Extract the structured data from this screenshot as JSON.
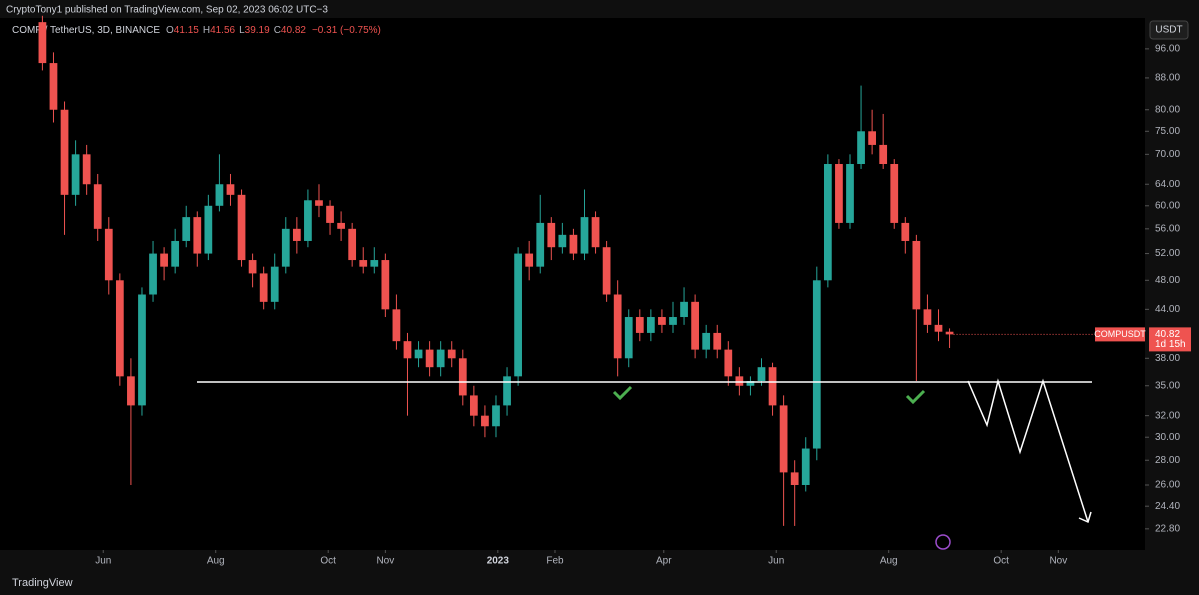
{
  "header": {
    "published": "CryptoTony1 published on TradingView.com, Sep 02, 2023 06:02 UTC−3",
    "symbol": "COMP / TetherUS, 3D, BINANCE",
    "ohlc_prefixes": [
      "O",
      "H",
      "L",
      "C"
    ],
    "change": "−0.31 (−0.75%)",
    "currency": "USDT",
    "brand": "TradingView"
  },
  "chart_data": {
    "type": "candlestick",
    "x": [
      -33,
      -27,
      -21,
      -15,
      -9,
      -3,
      3,
      9,
      15,
      21,
      27,
      33,
      39,
      45,
      51,
      57,
      63,
      69,
      75,
      81,
      87,
      93,
      99,
      105,
      111,
      117,
      123,
      129,
      135,
      141,
      147,
      153,
      159,
      165,
      171,
      177,
      183,
      189,
      195,
      201,
      207,
      213,
      219,
      225,
      231,
      237,
      243,
      249,
      255,
      261,
      267,
      273,
      279,
      285,
      291,
      297,
      303,
      309,
      315,
      321,
      327,
      333,
      339,
      345,
      351,
      357,
      363,
      369,
      375,
      381,
      387,
      393,
      399,
      405,
      411,
      417,
      423,
      429,
      435,
      441,
      447,
      453,
      459
    ],
    "open": [
      104,
      92,
      80,
      62,
      70,
      64,
      56,
      48,
      36,
      33,
      46,
      52,
      50,
      54,
      58,
      52,
      60,
      64,
      62,
      51,
      49,
      45,
      50,
      56,
      54,
      61,
      60,
      57,
      56,
      51,
      50,
      51,
      44,
      40,
      38,
      39,
      37,
      39,
      38,
      34,
      32,
      31,
      33,
      36,
      52,
      50,
      57,
      53,
      55,
      52,
      58,
      53,
      46,
      38,
      43,
      41,
      43,
      42,
      43,
      45,
      39,
      41,
      39,
      36,
      35,
      35.5,
      37,
      33,
      27,
      26,
      29,
      48,
      68,
      57,
      68,
      75,
      72,
      68,
      57,
      54,
      44,
      42,
      41.15
    ],
    "high": [
      106,
      95,
      82,
      73,
      72,
      66,
      58,
      49,
      38,
      47,
      54,
      53,
      56,
      60,
      59,
      62,
      70,
      66,
      63,
      52,
      50,
      52,
      58,
      58,
      63,
      64,
      61,
      59,
      57,
      53,
      53,
      52,
      46,
      41,
      40,
      40,
      40,
      40,
      39,
      35,
      33,
      34,
      37,
      53,
      54,
      62,
      58,
      57,
      56,
      63,
      59,
      54,
      48,
      44,
      44,
      44,
      44,
      45,
      47,
      46,
      42,
      42,
      40,
      37,
      36,
      38,
      37.5,
      34,
      28,
      30,
      50,
      70,
      69,
      70,
      86,
      80,
      79,
      69,
      58,
      55,
      46,
      44,
      41.56
    ],
    "low": [
      90,
      77,
      55,
      60,
      62,
      54,
      46,
      35,
      26,
      32,
      45,
      48,
      49,
      53,
      50,
      51,
      59,
      60,
      50,
      47,
      44,
      44,
      49,
      52,
      53,
      58,
      55,
      54,
      50,
      49,
      49,
      43,
      39,
      32,
      37,
      36,
      36,
      37,
      33,
      31,
      30,
      30,
      32,
      35,
      48,
      49,
      51,
      52,
      51,
      51,
      52,
      45,
      36,
      37,
      40,
      40,
      41,
      41,
      42,
      38,
      38,
      38,
      35,
      34,
      34,
      35,
      32,
      23,
      23,
      25.5,
      28,
      47,
      56,
      56,
      67,
      70,
      67,
      56,
      52,
      35.5,
      41,
      40,
      39.19
    ],
    "close": [
      92,
      80,
      62,
      70,
      64,
      56,
      48,
      36,
      33,
      46,
      52,
      50,
      54,
      58,
      52,
      60,
      64,
      62,
      51,
      49,
      45,
      50,
      56,
      54,
      61,
      60,
      57,
      56,
      51,
      50,
      51,
      44,
      40,
      38,
      39,
      37,
      39,
      38,
      34,
      32,
      31,
      33,
      36,
      52,
      50,
      57,
      53,
      55,
      52,
      58,
      53,
      46,
      38,
      43,
      41,
      43,
      42,
      43,
      45,
      39,
      41,
      39,
      36,
      35,
      35.5,
      37,
      33,
      27,
      26,
      29,
      48,
      68,
      57,
      68,
      75,
      72,
      68,
      57,
      54,
      44,
      42,
      41.15,
      40.82
    ],
    "up_color": "#26a69a",
    "down_color": "#ef5350",
    "xlim": [
      -56,
      565
    ],
    "ylim": [
      21.4,
      105.3
    ],
    "log_scale": true,
    "xticks": [
      {
        "value": 0,
        "label": "Jun"
      },
      {
        "value": 61,
        "label": "Aug"
      },
      {
        "value": 122,
        "label": "Oct"
      },
      {
        "value": 153,
        "label": "Nov"
      },
      {
        "value": 214,
        "label": "2023",
        "bold": true
      },
      {
        "value": 245,
        "label": "Feb"
      },
      {
        "value": 304,
        "label": "Apr"
      },
      {
        "value": 365,
        "label": "Jun"
      },
      {
        "value": 426,
        "label": "Aug"
      },
      {
        "value": 487,
        "label": "Oct"
      },
      {
        "value": 518,
        "label": "Nov"
      }
    ],
    "yticks": [
      {
        "value": 96,
        "label": "96.00"
      },
      {
        "value": 88,
        "label": "88.00"
      },
      {
        "value": 80,
        "label": "80.00"
      },
      {
        "value": 75,
        "label": "75.00"
      },
      {
        "value": 70,
        "label": "70.00"
      },
      {
        "value": 64,
        "label": "64.00"
      },
      {
        "value": 60,
        "label": "60.00"
      },
      {
        "value": 56,
        "label": "56.00"
      },
      {
        "value": 52,
        "label": "52.00"
      },
      {
        "value": 48,
        "label": "48.00"
      },
      {
        "value": 44,
        "label": "44.00"
      },
      {
        "value": 38,
        "label": "38.00"
      },
      {
        "value": 35,
        "label": "35.00"
      },
      {
        "value": 32,
        "label": "32.00"
      },
      {
        "value": 30,
        "label": "30.00"
      },
      {
        "value": 28,
        "label": "28.00"
      },
      {
        "value": 26,
        "label": "26.00"
      },
      {
        "value": 24.4,
        "label": "24.40"
      },
      {
        "value": 22.8,
        "label": "22.80"
      }
    ],
    "support_level": 35.4,
    "symbol_tag": "COMPUSDT",
    "countdown": "1d 15h"
  }
}
